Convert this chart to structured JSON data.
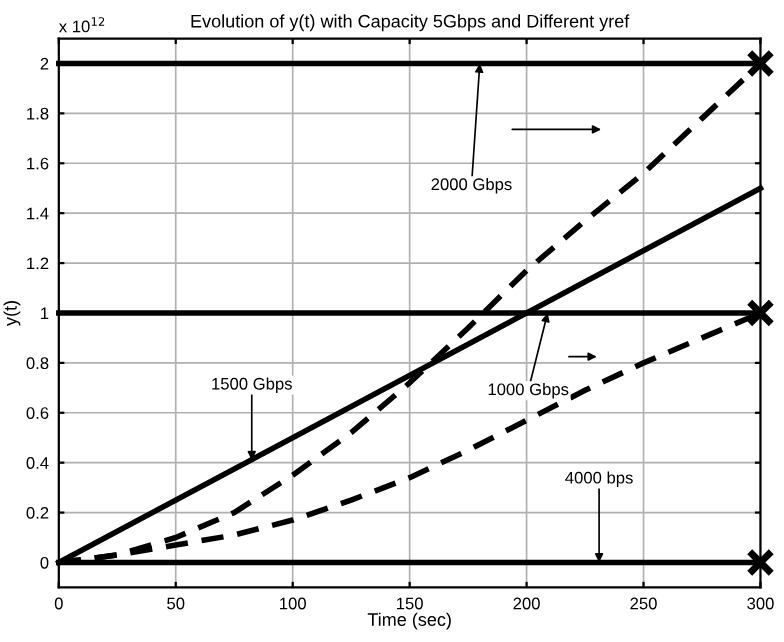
{
  "chart_data": {
    "type": "line",
    "title": "Evolution of y(t) with Capacity 5Gbps and Different yref",
    "xlabel": "Time (sec)",
    "ylabel": "y(t)",
    "xlim": [
      0,
      300
    ],
    "xticks": [
      0,
      50,
      100,
      150,
      200,
      250,
      300
    ],
    "ylim": [
      -0.1,
      2.1
    ],
    "yticks": [
      0,
      0.2,
      0.4,
      0.6,
      0.8,
      1,
      1.2,
      1.4,
      1.6,
      1.8,
      2
    ],
    "grid": true,
    "series": [
      {
        "color": "#000000",
        "x": [
          0,
          300
        ],
        "values": [
          2,
          2
        ],
        "line_style": "solid"
      },
      {
        "color": "#000000",
        "x": [
          0,
          300
        ],
        "values": [
          1,
          1
        ],
        "line_style": "solid"
      },
      {
        "color": "#000000",
        "x": [
          0,
          300
        ],
        "values": [
          0,
          0
        ],
        "line_style": "solid"
      },
      {
        "color": "#000000",
        "x": [
          0,
          300
        ],
        "values": [
          0,
          1.5
        ],
        "line_style": "solid"
      },
      {
        "color": "#000000",
        "x": [
          0,
          25,
          50,
          75,
          100,
          125,
          150,
          175,
          200,
          225,
          250,
          275,
          300
        ],
        "values": [
          0,
          0.03,
          0.1,
          0.2,
          0.35,
          0.52,
          0.72,
          0.94,
          1.17,
          1.37,
          1.56,
          1.78,
          2.0
        ],
        "line_style": "dashed"
      },
      {
        "color": "#000000",
        "x": [
          0,
          25,
          50,
          75,
          100,
          125,
          150,
          175,
          200,
          225,
          250,
          275,
          300
        ],
        "values": [
          0,
          0.03,
          0.07,
          0.11,
          0.17,
          0.25,
          0.34,
          0.45,
          0.57,
          0.69,
          0.8,
          0.9,
          1.0
        ],
        "line_style": "dashed"
      },
      {
        "type": "scatter",
        "color": "#000000",
        "marker": "cross",
        "x": [
          300,
          300,
          300
        ],
        "values": [
          2,
          1,
          0
        ]
      }
    ],
    "annotations": [
      "x 10$^{12}$",
      {
        "text": "2000 Gbps",
        "x": 180,
        "y": 2
      },
      {
        "text": "1500 Gbps",
        "x": 82.5,
        "y": 0.41
      },
      {
        "text": "1000 Gbps",
        "x": 209,
        "y": 1
      },
      {
        "text": "4000 bps",
        "x": 231,
        "y": 0
      }
    ]
  }
}
